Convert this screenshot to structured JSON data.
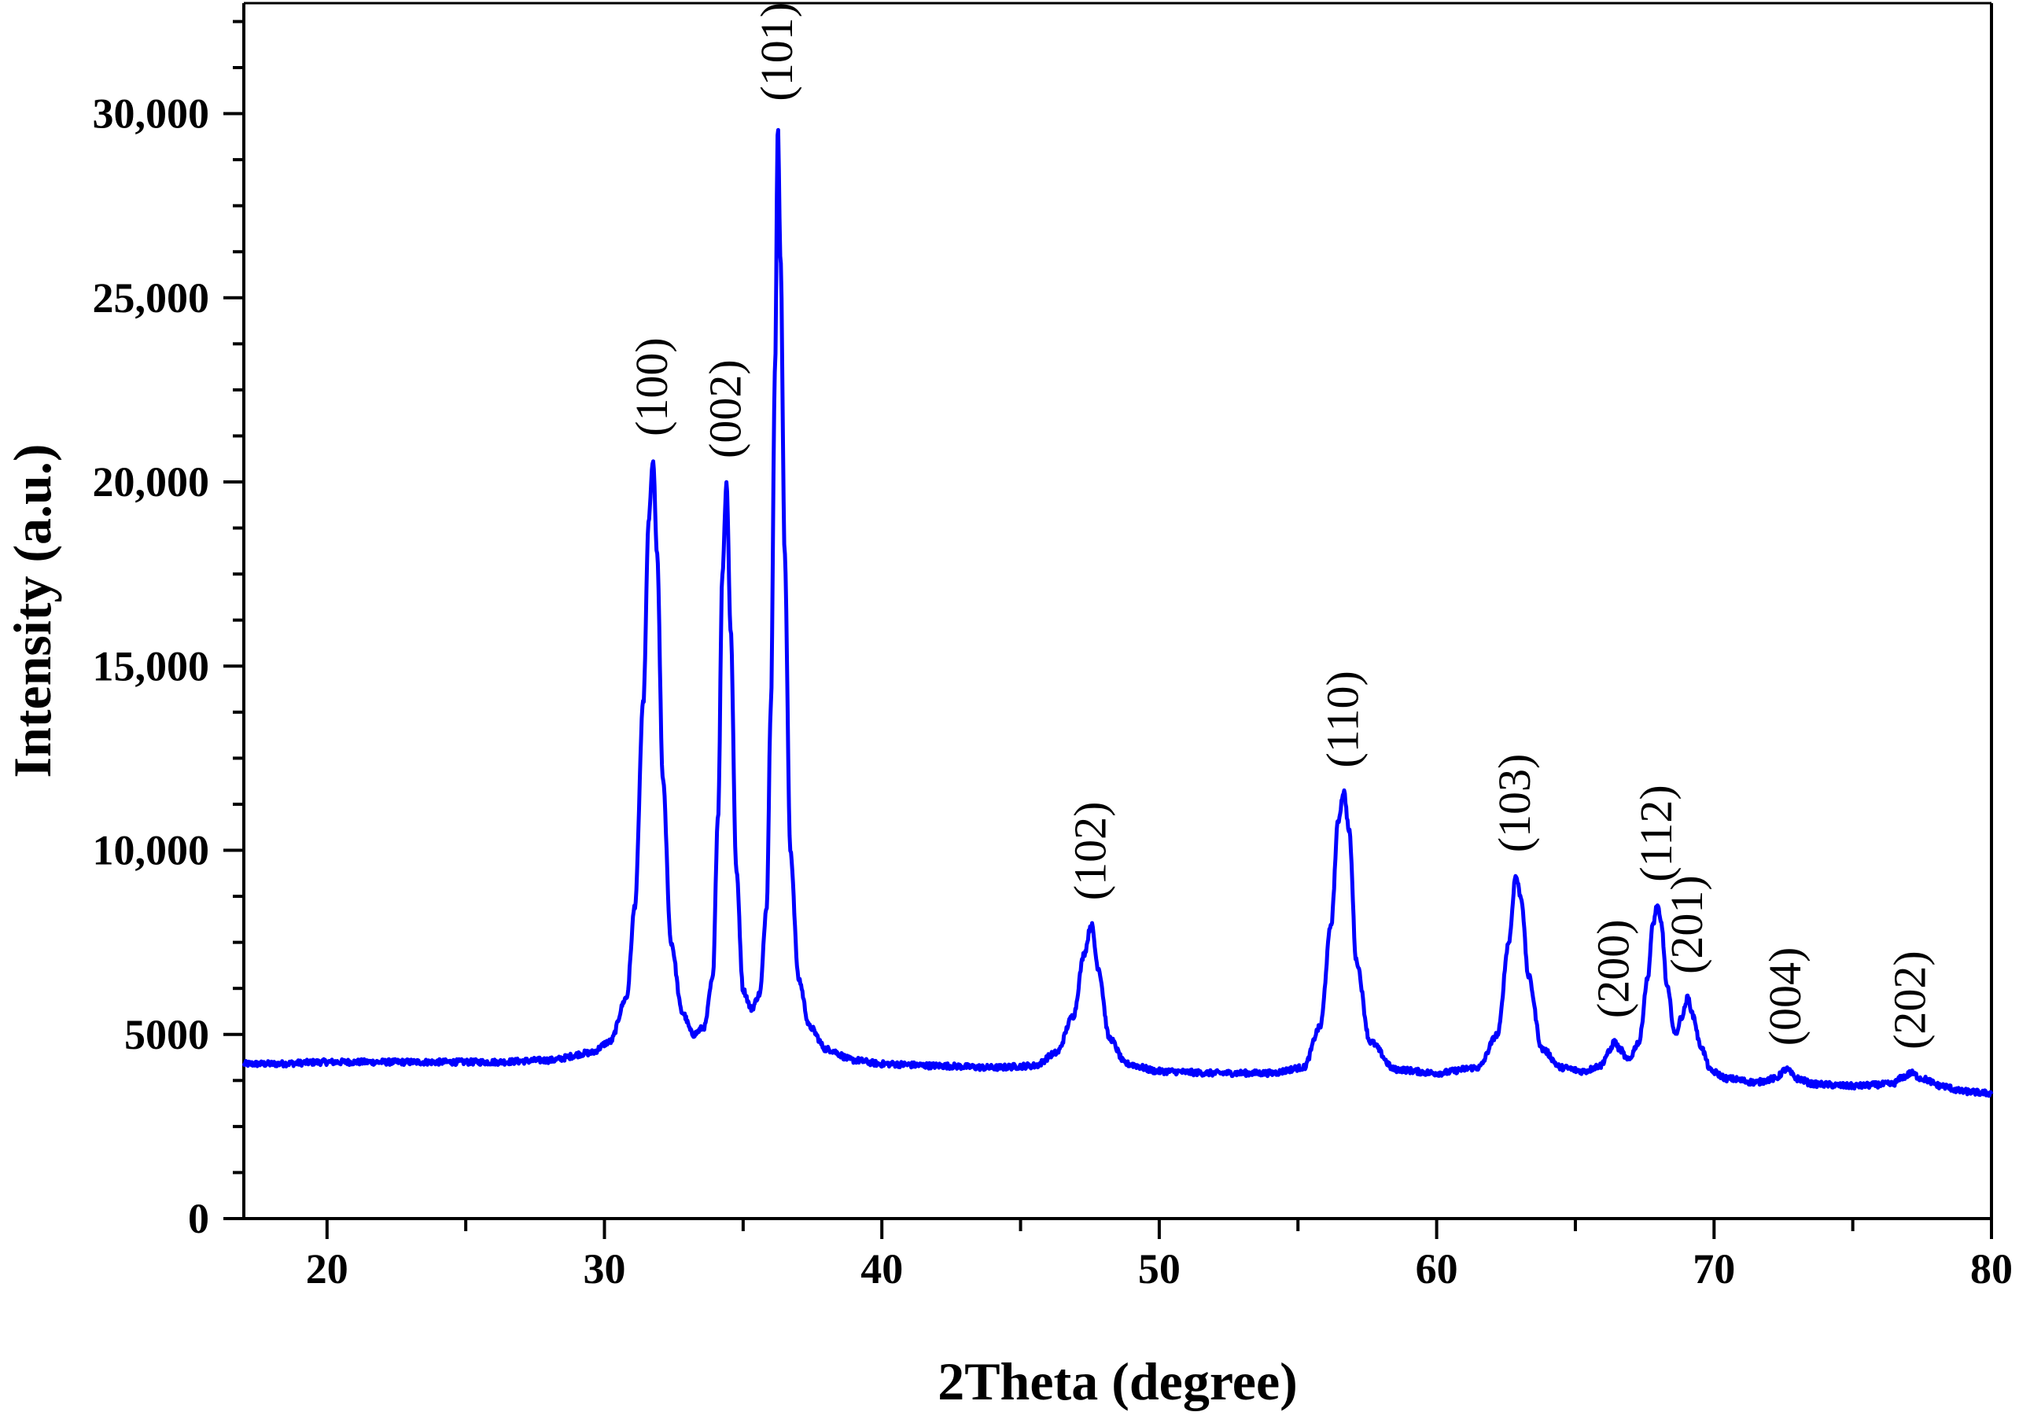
{
  "chart_data": {
    "type": "line",
    "title": "",
    "xlabel": "2Theta (degree)",
    "ylabel": "Intensity (a.u.)",
    "xlim": [
      17,
      80
    ],
    "ylim": [
      0,
      33000
    ],
    "x_ticks": [
      20,
      30,
      40,
      50,
      60,
      70,
      80
    ],
    "x_tick_labels": [
      "20",
      "30",
      "40",
      "50",
      "60",
      "70",
      "80"
    ],
    "y_ticks": [
      0,
      5000,
      10000,
      15000,
      20000,
      25000,
      30000
    ],
    "y_tick_labels": [
      "0",
      "5000",
      "10,000",
      "15,000",
      "20,000",
      "25,000",
      "30,000"
    ],
    "grid": false,
    "legend": "none",
    "line_color": "#0000ff",
    "series": [
      {
        "x": [
          17.0,
          18.0,
          20.0,
          22.0,
          24.0,
          26.0,
          28.0,
          29.5,
          30.2,
          30.8,
          31.1,
          31.4,
          31.6,
          31.75,
          31.9,
          32.1,
          32.4,
          32.8,
          33.2,
          33.6,
          33.9,
          34.1,
          34.25,
          34.4,
          34.55,
          34.75,
          35.0,
          35.3,
          35.6,
          35.85,
          36.0,
          36.15,
          36.25,
          36.35,
          36.5,
          36.7,
          37.0,
          37.4,
          38.0,
          39.0,
          40.0,
          42.0,
          44.0,
          45.5,
          46.3,
          46.9,
          47.3,
          47.55,
          47.8,
          48.2,
          48.8,
          50.0,
          52.0,
          54.0,
          55.2,
          55.8,
          56.2,
          56.45,
          56.65,
          56.85,
          57.1,
          57.6,
          58.5,
          60.0,
          61.5,
          62.2,
          62.6,
          62.85,
          63.05,
          63.3,
          63.8,
          64.5,
          65.3,
          65.9,
          66.2,
          66.4,
          66.6,
          66.9,
          67.3,
          67.6,
          67.8,
          67.95,
          68.1,
          68.3,
          68.6,
          68.85,
          69.05,
          69.25,
          69.5,
          69.9,
          70.5,
          71.5,
          72.2,
          72.6,
          73.0,
          73.6,
          75.0,
          76.4,
          76.85,
          77.1,
          77.5,
          78.2,
          79.0,
          80.0
        ],
        "y": [
          4200,
          4200,
          4250,
          4250,
          4250,
          4250,
          4300,
          4500,
          4800,
          6000,
          8500,
          14000,
          19000,
          20600,
          18000,
          12000,
          7500,
          5600,
          5000,
          5200,
          6500,
          11000,
          17500,
          20000,
          16000,
          9500,
          6200,
          5700,
          6100,
          8500,
          14000,
          23000,
          29700,
          26000,
          18000,
          10000,
          6500,
          5200,
          4600,
          4300,
          4200,
          4150,
          4100,
          4150,
          4500,
          5500,
          7200,
          8000,
          6800,
          4900,
          4200,
          4000,
          3950,
          3950,
          4100,
          5200,
          8000,
          10800,
          11600,
          10500,
          7000,
          4800,
          4050,
          3950,
          4100,
          5000,
          7500,
          9300,
          8700,
          6600,
          4600,
          4100,
          4000,
          4150,
          4500,
          4800,
          4600,
          4300,
          4800,
          6500,
          8000,
          8500,
          8000,
          6300,
          5000,
          5500,
          6000,
          5500,
          4700,
          4000,
          3800,
          3700,
          3800,
          4050,
          3800,
          3650,
          3600,
          3650,
          3850,
          3950,
          3800,
          3600,
          3450,
          3400
        ],
        "peaks": [
          {
            "x": 31.75,
            "y": 20600,
            "label": "(100)"
          },
          {
            "x": 34.4,
            "y": 20000,
            "label": "(002)"
          },
          {
            "x": 36.25,
            "y": 29700,
            "label": "(101)"
          },
          {
            "x": 47.55,
            "y": 8000,
            "label": "(102)"
          },
          {
            "x": 56.65,
            "y": 11600,
            "label": "(110)"
          },
          {
            "x": 62.85,
            "y": 9300,
            "label": "(103)"
          },
          {
            "x": 66.4,
            "y": 4800,
            "label": "(200)"
          },
          {
            "x": 67.95,
            "y": 8500,
            "label": "(112)"
          },
          {
            "x": 69.05,
            "y": 6000,
            "label": "(201)"
          },
          {
            "x": 72.6,
            "y": 4050,
            "label": "(004)"
          },
          {
            "x": 77.1,
            "y": 3950,
            "label": "(202)"
          }
        ]
      }
    ]
  }
}
